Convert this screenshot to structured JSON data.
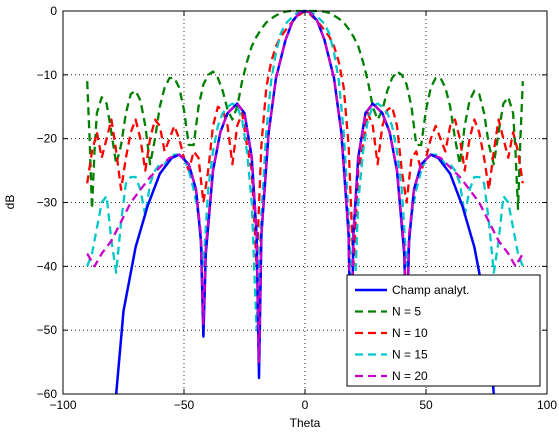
{
  "chart_data": {
    "type": "line",
    "xlabel": "Theta",
    "ylabel": "dB",
    "xlim": [
      -100,
      100
    ],
    "ylim": [
      -60,
      0
    ],
    "xticks": [
      -100,
      -50,
      0,
      50,
      100
    ],
    "yticks": [
      0,
      -10,
      -20,
      -30,
      -40,
      -50,
      -60
    ],
    "xtick_labels": [
      "−100",
      "−50",
      "0",
      "50",
      "100"
    ],
    "ytick_labels": [
      "0",
      "−10",
      "−20",
      "−30",
      "−40",
      "−50",
      "−60"
    ],
    "grid": true,
    "legend_position": "bottom-right",
    "series": [
      {
        "name": "Champ analyt.",
        "color": "#0000ff",
        "style": "solid",
        "x": [
          -78,
          -75,
          -70,
          -65,
          -60,
          -55,
          -52,
          -48,
          -45,
          -43,
          -42,
          -41,
          -38,
          -35,
          -32,
          -28,
          -25,
          -22,
          -20,
          -19,
          -18,
          -15,
          -12,
          -8,
          -5,
          -2,
          0,
          2,
          5,
          8,
          12,
          15,
          18,
          19,
          20,
          22,
          25,
          28,
          32,
          35,
          38,
          41,
          42,
          43,
          45,
          48,
          52,
          55,
          60,
          65,
          70,
          75,
          78
        ],
        "y": [
          -60,
          -47,
          -37,
          -30.5,
          -25.5,
          -23,
          -22.5,
          -24,
          -28,
          -36,
          -51,
          -38,
          -25,
          -19,
          -16,
          -14.5,
          -16,
          -23,
          -35,
          -57.5,
          -35,
          -19,
          -10.5,
          -4.5,
          -1.5,
          -0.2,
          0,
          -0.2,
          -1.5,
          -4.5,
          -10.5,
          -19,
          -35,
          -57.5,
          -35,
          -23,
          -16,
          -14.5,
          -16,
          -19,
          -25,
          -38,
          -51,
          -36,
          -28,
          -24,
          -22.5,
          -23,
          -25.5,
          -30.5,
          -37,
          -47,
          -60
        ]
      },
      {
        "name": "N = 5",
        "color": "#008000",
        "style": "dashed",
        "x": [
          -90,
          -89,
          -88,
          -87,
          -86,
          -84,
          -82,
          -80,
          -78,
          -76,
          -74,
          -72,
          -70,
          -68,
          -66,
          -64,
          -62,
          -60,
          -58,
          -56,
          -54,
          -52,
          -50,
          -48,
          -46,
          -44,
          -42,
          -40,
          -38,
          -36,
          -34,
          -32,
          -30,
          -28,
          -26,
          -24,
          -22,
          -20,
          -18,
          -16,
          -14,
          -12,
          -10,
          -8,
          -6,
          -4,
          -2,
          0,
          2,
          4,
          6,
          8,
          10,
          12,
          14,
          16,
          18,
          20,
          22,
          24,
          26,
          28,
          30,
          32,
          34,
          36,
          38,
          40,
          42,
          44,
          46,
          48,
          50,
          52,
          54,
          56,
          58,
          60,
          62,
          64,
          66,
          68,
          70,
          72,
          74,
          76,
          78,
          80,
          82,
          84,
          86,
          87,
          88,
          89,
          90
        ],
        "y": [
          -11,
          -20,
          -31,
          -22,
          -16,
          -13.5,
          -14.5,
          -19,
          -24,
          -21,
          -16,
          -13,
          -12.5,
          -14,
          -18,
          -24,
          -20,
          -15,
          -12,
          -10.5,
          -10.5,
          -12,
          -15.5,
          -21,
          -21,
          -15,
          -11.5,
          -10,
          -9.5,
          -10.5,
          -12.5,
          -15.5,
          -17,
          -15,
          -11,
          -8,
          -5.5,
          -4,
          -2.8,
          -1.8,
          -1.2,
          -0.7,
          -0.3,
          -0.1,
          0,
          0,
          0,
          0,
          0,
          0,
          0,
          -0.1,
          -0.3,
          -0.7,
          -1.2,
          -1.8,
          -2.8,
          -4,
          -5.5,
          -8,
          -11,
          -15,
          -17,
          -15.5,
          -12.5,
          -10.5,
          -9.5,
          -10,
          -11.5,
          -15,
          -21,
          -21,
          -15.5,
          -12,
          -10.5,
          -10.5,
          -12,
          -15,
          -20,
          -24,
          -18,
          -14,
          -12.5,
          -13,
          -16,
          -21,
          -24,
          -19,
          -14.5,
          -13.5,
          -16,
          -22,
          -31,
          -20,
          -11
        ]
      },
      {
        "name": "N = 10",
        "color": "#ff0000",
        "style": "dashed",
        "x": [
          -90,
          -88,
          -86,
          -84,
          -82,
          -80,
          -78,
          -76,
          -74,
          -72,
          -70,
          -68,
          -66,
          -64,
          -62,
          -60,
          -58,
          -56,
          -54,
          -52,
          -50,
          -48,
          -46,
          -44,
          -42,
          -40,
          -38,
          -36,
          -34,
          -32,
          -30,
          -28,
          -26,
          -24,
          -22,
          -20,
          -18,
          -16,
          -14,
          -12,
          -10,
          -8,
          -6,
          -4,
          -2,
          0,
          2,
          4,
          6,
          8,
          10,
          12,
          14,
          16,
          18,
          20,
          22,
          24,
          26,
          28,
          30,
          32,
          34,
          36,
          38,
          40,
          42,
          44,
          46,
          48,
          50,
          52,
          54,
          56,
          58,
          60,
          62,
          64,
          66,
          68,
          70,
          72,
          74,
          76,
          78,
          80,
          82,
          84,
          86,
          88,
          90
        ],
        "y": [
          -27,
          -22,
          -19,
          -23,
          -20,
          -17,
          -22,
          -28,
          -23,
          -19,
          -17,
          -20,
          -25,
          -20,
          -17,
          -18,
          -22,
          -20,
          -18,
          -20,
          -23,
          -25,
          -22,
          -23,
          -30,
          -25,
          -18,
          -15,
          -15.5,
          -18,
          -24,
          -18,
          -16,
          -21,
          -25,
          -40,
          -21,
          -12,
          -8,
          -5.5,
          -4,
          -3,
          -2,
          -1.2,
          -0.5,
          0,
          -0.5,
          -1.2,
          -2,
          -3,
          -4,
          -5.5,
          -8,
          -12,
          -21,
          -40,
          -25,
          -21,
          -16,
          -18,
          -24,
          -18,
          -15.5,
          -15,
          -18,
          -25,
          -30,
          -23,
          -22,
          -25,
          -23,
          -20,
          -18,
          -20,
          -22,
          -18,
          -17,
          -20,
          -25,
          -20,
          -17,
          -19,
          -23,
          -28,
          -22,
          -17,
          -20,
          -23,
          -19,
          -22,
          -27
        ]
      },
      {
        "name": "N = 15",
        "color": "#00c8c8",
        "style": "dashed",
        "x": [
          -90,
          -88,
          -86,
          -84,
          -82,
          -80,
          -78,
          -76,
          -74,
          -72,
          -70,
          -68,
          -66,
          -64,
          -62,
          -60,
          -58,
          -56,
          -54,
          -52,
          -50,
          -48,
          -46,
          -44,
          -42,
          -40,
          -38,
          -36,
          -34,
          -32,
          -30,
          -28,
          -26,
          -24,
          -22,
          -20,
          -18,
          -16,
          -14,
          -12,
          -10,
          -8,
          -6,
          -4,
          -2,
          0,
          2,
          4,
          6,
          8,
          10,
          12,
          14,
          16,
          18,
          20,
          22,
          24,
          26,
          28,
          30,
          32,
          34,
          36,
          38,
          40,
          42,
          44,
          46,
          48,
          50,
          52,
          54,
          56,
          58,
          60,
          62,
          64,
          66,
          68,
          70,
          72,
          74,
          76,
          78,
          80,
          82,
          84,
          86,
          88,
          90
        ],
        "y": [
          -40,
          -38,
          -34,
          -30,
          -29,
          -36,
          -41,
          -33,
          -27,
          -26,
          -26,
          -28,
          -32,
          -27,
          -25,
          -24,
          -24,
          -23,
          -22.5,
          -22.5,
          -23,
          -25,
          -28,
          -32,
          -40,
          -28,
          -22,
          -18,
          -16,
          -15,
          -14.5,
          -15,
          -17,
          -22,
          -30,
          -50,
          -32,
          -19,
          -11,
          -6.5,
          -3.5,
          -2,
          -1.2,
          -0.5,
          -0.1,
          0,
          -0.1,
          -0.5,
          -1.2,
          -2,
          -3.5,
          -6.5,
          -11,
          -19,
          -32,
          -50,
          -30,
          -22,
          -17,
          -15,
          -14.5,
          -15,
          -16,
          -18,
          -22,
          -28,
          -40,
          -32,
          -28,
          -25,
          -23,
          -22.5,
          -22.5,
          -23,
          -24,
          -24,
          -25,
          -27,
          -32,
          -28,
          -26,
          -26,
          -27,
          -33,
          -41,
          -36,
          -29,
          -30,
          -34,
          -38,
          -40
        ]
      },
      {
        "name": "N = 20",
        "color": "#c800c8",
        "style": "dashed",
        "x": [
          -90,
          -87,
          -84,
          -80,
          -76,
          -72,
          -68,
          -64,
          -60,
          -56,
          -52,
          -48,
          -45,
          -43,
          -42,
          -41,
          -38,
          -35,
          -32,
          -28,
          -25,
          -22,
          -20,
          -19,
          -18,
          -15,
          -12,
          -8,
          -5,
          -2,
          0,
          2,
          5,
          8,
          12,
          15,
          18,
          19,
          20,
          22,
          25,
          28,
          32,
          35,
          38,
          41,
          42,
          43,
          45,
          48,
          52,
          56,
          60,
          64,
          68,
          72,
          76,
          80,
          84,
          87,
          90
        ],
        "y": [
          -38,
          -40,
          -38,
          -36,
          -33,
          -30,
          -28,
          -26,
          -24.5,
          -23,
          -22.5,
          -24,
          -28,
          -35,
          -49,
          -37,
          -25,
          -19,
          -16,
          -14.5,
          -16,
          -23,
          -35,
          -55,
          -35,
          -19,
          -10.5,
          -4.5,
          -1.5,
          -0.2,
          0,
          -0.2,
          -1.5,
          -4.5,
          -10.5,
          -19,
          -35,
          -55,
          -35,
          -23,
          -16,
          -14.5,
          -16,
          -19,
          -25,
          -37,
          -49,
          -35,
          -28,
          -24,
          -22.5,
          -23,
          -24.5,
          -26,
          -28,
          -30,
          -33,
          -36,
          -38,
          -40,
          -38
        ]
      }
    ]
  }
}
